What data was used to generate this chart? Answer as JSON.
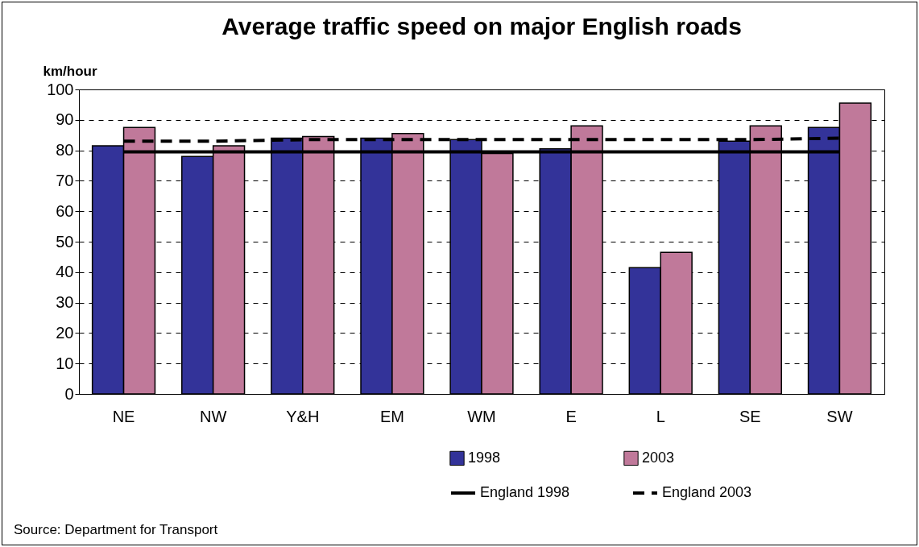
{
  "chart_data": {
    "type": "bar",
    "title": "Average traffic speed on major English roads",
    "ylabel": "km/hour",
    "categories": [
      "NE",
      "NW",
      "Y&H",
      "EM",
      "WM",
      "E",
      "L",
      "SE",
      "SW"
    ],
    "series": [
      {
        "name": "1998",
        "color": "#333399",
        "values": [
          81.5,
          78,
          84,
          84,
          83.5,
          80.5,
          41.5,
          83,
          87.5
        ]
      },
      {
        "name": "2003",
        "color": "#c0799a",
        "values": [
          87.5,
          81.5,
          84.5,
          85.5,
          79,
          88,
          46.5,
          88,
          95.5
        ]
      },
      {
        "name": "England 1998",
        "type": "line",
        "color": "#000000",
        "line_style": "solid",
        "values": [
          79.5,
          79.5,
          79.5,
          79.5,
          79.5,
          79.5,
          79.5,
          79.5,
          79.5
        ]
      },
      {
        "name": "England 2003",
        "type": "line",
        "color": "#000000",
        "line_style": "dashed",
        "values": [
          83,
          83,
          83.5,
          83.5,
          83.5,
          83.5,
          83.5,
          83.5,
          84
        ]
      }
    ],
    "ylim": [
      0,
      100
    ],
    "yticks": [
      0,
      10,
      20,
      30,
      40,
      50,
      60,
      70,
      80,
      90,
      100
    ],
    "grid": "y",
    "legend": "bottom",
    "annotations": [
      "Source: Department for Transport"
    ]
  }
}
